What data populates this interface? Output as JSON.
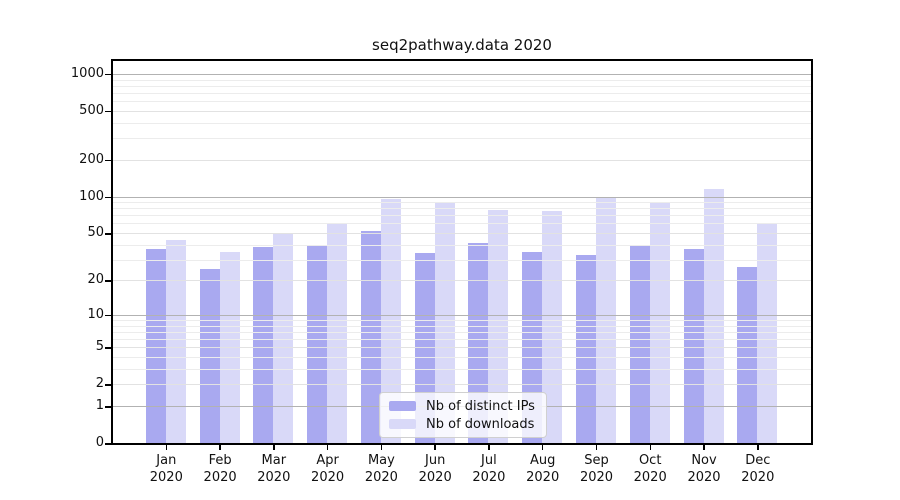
{
  "chart_data": {
    "type": "bar",
    "title": "seq2pathway.data 2020",
    "year_label": "2020",
    "categories": [
      "Jan",
      "Feb",
      "Mar",
      "Apr",
      "May",
      "Jun",
      "Jul",
      "Aug",
      "Sep",
      "Oct",
      "Nov",
      "Dec"
    ],
    "series": [
      {
        "name": "Nb of distinct IPs",
        "color": "#a9a9f0",
        "values": [
          37,
          25,
          38,
          40,
          52,
          34,
          41,
          35,
          33,
          40,
          37,
          26
        ]
      },
      {
        "name": "Nb of downloads",
        "color": "#d9d9f8",
        "values": [
          44,
          35,
          49,
          60,
          95,
          88,
          78,
          76,
          98,
          91,
          116,
          60
        ]
      }
    ],
    "y_ticks": [
      1000,
      500,
      200,
      100,
      50,
      20,
      10,
      5,
      2,
      1,
      0
    ],
    "y_scale": "log1p",
    "ylim": [
      0,
      1275
    ],
    "grid": true,
    "legend_position": "lower center",
    "colors": {
      "grid_major": "#b2b2b2",
      "grid_minor": "#ececec",
      "spine": "#000000",
      "background": "#ffffff"
    }
  }
}
